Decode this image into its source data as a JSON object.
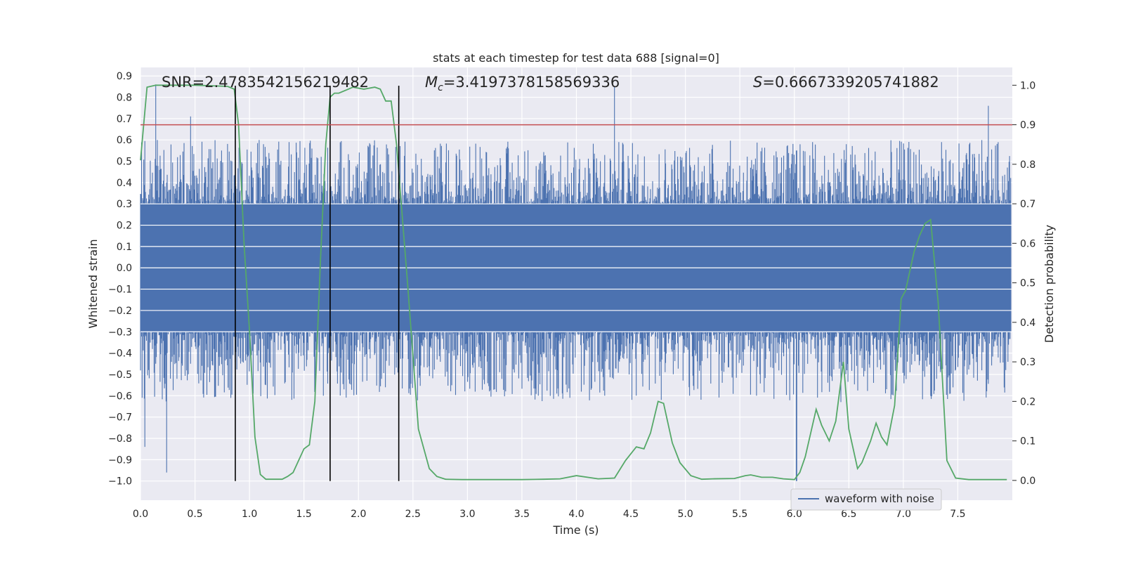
{
  "chart_data": {
    "type": "line",
    "title": "stats at each timestep for test data 688 [signal=0]",
    "xlabel": "Time (s)",
    "ylabel_left": "Whitened strain",
    "ylabel_right": "Detection probability",
    "xlim": [
      0.0,
      8.0
    ],
    "ylim_left": [
      -1.09,
      0.94
    ],
    "ylim_right": [
      -0.05,
      1.045
    ],
    "x_ticks": [
      "0.0",
      "0.5",
      "1.0",
      "1.5",
      "2.0",
      "2.5",
      "3.0",
      "3.5",
      "4.0",
      "4.5",
      "5.0",
      "5.5",
      "6.0",
      "6.5",
      "7.0",
      "7.5"
    ],
    "y_ticks_left": [
      "0.9",
      "0.8",
      "0.7",
      "0.6",
      "0.5",
      "0.4",
      "0.3",
      "0.2",
      "0.1",
      "0.0",
      "−0.1",
      "−0.2",
      "−0.3",
      "−0.4",
      "−0.5",
      "−0.6",
      "−0.7",
      "−0.8",
      "−0.9",
      "−1.0"
    ],
    "y_ticks_right": [
      "1.0",
      "0.9",
      "0.8",
      "0.7",
      "0.6",
      "0.5",
      "0.4",
      "0.3",
      "0.2",
      "0.1",
      "0.0"
    ],
    "grid": true,
    "legend_position": "lower-right",
    "annotations": {
      "snr": "SNR=2.4783542156219482",
      "mc_symbol": "M",
      "mc_sub": "c",
      "mc_value": "=3.4197378158569336",
      "s_symbol": "S",
      "s_value": "=0.6667339205741882"
    },
    "threshold": {
      "axis": "right",
      "value": 0.9,
      "color": "#c44e52"
    },
    "vertical_lines": [
      0.87,
      1.74,
      2.37
    ],
    "series": [
      {
        "name": "waveform with noise",
        "axis": "left",
        "color": "#4c72b0",
        "description_peaks": [
          {
            "x": 0.14,
            "max": 0.86,
            "min": -0.45
          },
          {
            "x": 0.04,
            "max": 0.45,
            "min": -0.84
          },
          {
            "x": 0.24,
            "max": 0.4,
            "min": -0.96
          },
          {
            "x": 0.46,
            "max": 0.71,
            "min": -0.45
          },
          {
            "x": 4.35,
            "max": 0.85,
            "min": -0.3
          },
          {
            "x": 6.02,
            "max": 0.55,
            "min": -1.0
          },
          {
            "x": 7.78,
            "max": 0.76,
            "min": -0.3
          }
        ],
        "envelope_upper": 0.3,
        "envelope_lower": -0.3
      },
      {
        "name": "",
        "axis": "right",
        "color": "#55a868",
        "x": [
          0.0,
          0.06,
          0.14,
          0.3,
          0.5,
          0.7,
          0.8,
          0.86,
          0.9,
          0.95,
          1.0,
          1.05,
          1.1,
          1.15,
          1.2,
          1.3,
          1.35,
          1.4,
          1.5,
          1.55,
          1.6,
          1.65,
          1.7,
          1.74,
          1.78,
          1.82,
          1.95,
          2.05,
          2.15,
          2.2,
          2.25,
          2.3,
          2.35,
          2.45,
          2.55,
          2.65,
          2.72,
          2.8,
          2.95,
          3.2,
          3.5,
          3.7,
          3.85,
          4.0,
          4.2,
          4.35,
          4.45,
          4.55,
          4.62,
          4.68,
          4.75,
          4.8,
          4.88,
          4.95,
          5.05,
          5.15,
          5.25,
          5.45,
          5.55,
          5.6,
          5.7,
          5.8,
          5.9,
          6.0,
          6.05,
          6.1,
          6.2,
          6.25,
          6.32,
          6.38,
          6.45,
          6.5,
          6.58,
          6.62,
          6.7,
          6.75,
          6.8,
          6.85,
          6.92,
          6.98,
          7.02,
          7.1,
          7.15,
          7.2,
          7.25,
          7.32,
          7.4,
          7.48,
          7.6,
          7.8,
          7.95
        ],
        "y": [
          0.81,
          0.995,
          1.0,
          1.0,
          1.0,
          0.998,
          0.997,
          0.99,
          0.9,
          0.6,
          0.38,
          0.11,
          0.015,
          0.003,
          0.003,
          0.003,
          0.01,
          0.02,
          0.08,
          0.09,
          0.2,
          0.55,
          0.85,
          0.97,
          0.98,
          0.98,
          0.995,
          0.99,
          0.995,
          0.99,
          0.96,
          0.96,
          0.85,
          0.5,
          0.13,
          0.03,
          0.01,
          0.003,
          0.002,
          0.002,
          0.002,
          0.003,
          0.004,
          0.012,
          0.004,
          0.006,
          0.05,
          0.085,
          0.08,
          0.12,
          0.2,
          0.195,
          0.095,
          0.045,
          0.012,
          0.003,
          0.004,
          0.005,
          0.012,
          0.014,
          0.008,
          0.008,
          0.004,
          0.002,
          0.02,
          0.06,
          0.18,
          0.14,
          0.1,
          0.15,
          0.3,
          0.13,
          0.03,
          0.045,
          0.1,
          0.145,
          0.11,
          0.09,
          0.19,
          0.46,
          0.48,
          0.58,
          0.62,
          0.65,
          0.66,
          0.45,
          0.05,
          0.006,
          0.002,
          0.002,
          0.002
        ]
      }
    ]
  }
}
